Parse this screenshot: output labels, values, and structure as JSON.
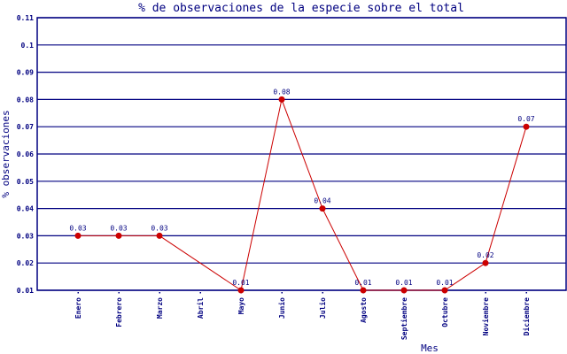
{
  "chart_data": {
    "type": "line",
    "title": "% de observaciones de la especie sobre el total",
    "xlabel": "Mes",
    "ylabel": "% observaciones",
    "categories": [
      "Enero",
      "Febrero",
      "Marzo",
      "Abril",
      "Mayo",
      "Junio",
      "Julio",
      "Agosto",
      "Septiembre",
      "Octubre",
      "Noviembre",
      "Diciembre"
    ],
    "values": [
      0.03,
      0.03,
      0.03,
      null,
      0.01,
      0.08,
      0.04,
      0.01,
      0.01,
      0.01,
      0.02,
      0.07
    ],
    "data_labels": [
      "0.03",
      "0.03",
      "0.03",
      "",
      "0.01",
      "0.08",
      "0.04",
      "0.01",
      "0.01",
      "0.01",
      "0.02",
      "0.07"
    ],
    "ylim": [
      0.01,
      0.11
    ],
    "yticks": [
      "0.01",
      "0.02",
      "0.03",
      "0.04",
      "0.05",
      "0.06",
      "0.07",
      "0.08",
      "0.09",
      "0.1",
      "0.11"
    ],
    "grid": true,
    "colors": {
      "axis": "#000080",
      "line": "#cc0000",
      "point": "#cc0000",
      "text": "#000080"
    }
  }
}
